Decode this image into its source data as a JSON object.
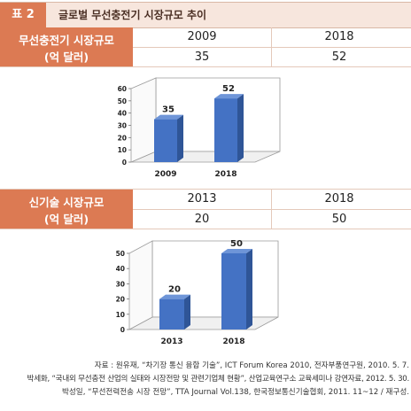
{
  "header": {
    "table_no": "표 2",
    "title": "글로벌 무선충전기 시장규모 추이"
  },
  "table1": {
    "label_line1": "무선충전기 시장규모",
    "label_line2": "(억 달러)",
    "years": [
      "2009",
      "2018"
    ],
    "values": [
      "35",
      "52"
    ]
  },
  "table2": {
    "label_line1": "신기술 시장규모",
    "label_line2": "(억 달러)",
    "years": [
      "2013",
      "2018"
    ],
    "values": [
      "20",
      "50"
    ]
  },
  "chart_data": [
    {
      "type": "bar",
      "categories": [
        "2009",
        "2018"
      ],
      "values": [
        35,
        52
      ],
      "ylim": [
        0,
        60
      ],
      "yticks": [
        "0",
        "10",
        "20",
        "30",
        "40",
        "50",
        "60"
      ],
      "data_labels": [
        "35",
        "52"
      ],
      "bar_color": "#4472c4",
      "grid": false
    },
    {
      "type": "bar",
      "categories": [
        "2013",
        "2018"
      ],
      "values": [
        20,
        50
      ],
      "ylim": [
        0,
        50
      ],
      "yticks": [
        "0",
        "10",
        "20",
        "30",
        "40",
        "50"
      ],
      "data_labels": [
        "20",
        "50"
      ],
      "bar_color": "#4472c4",
      "grid": false
    }
  ],
  "source": {
    "line1": "자료 : 원유재, “차기장 통신 융합 기술”, ICT Forum Korea 2010, 전자부품연구원, 2010. 5. 7.",
    "line2": "박세화, “국내외 무선충전 산업의 실태와 시장전망 및 관련기업체 현황”, 산업교육연구소 교육세미나 강연자료, 2012. 5. 30.",
    "line3": "박성일, “무선전력전송 시장 전망”, TTA Journal Vol.138, 한국정보통신기술협회, 2011. 11~12 / 재구성."
  },
  "colors": {
    "accent": "#dc7a53",
    "header_bg": "#f7e6dd",
    "bar": "#4472c4"
  }
}
